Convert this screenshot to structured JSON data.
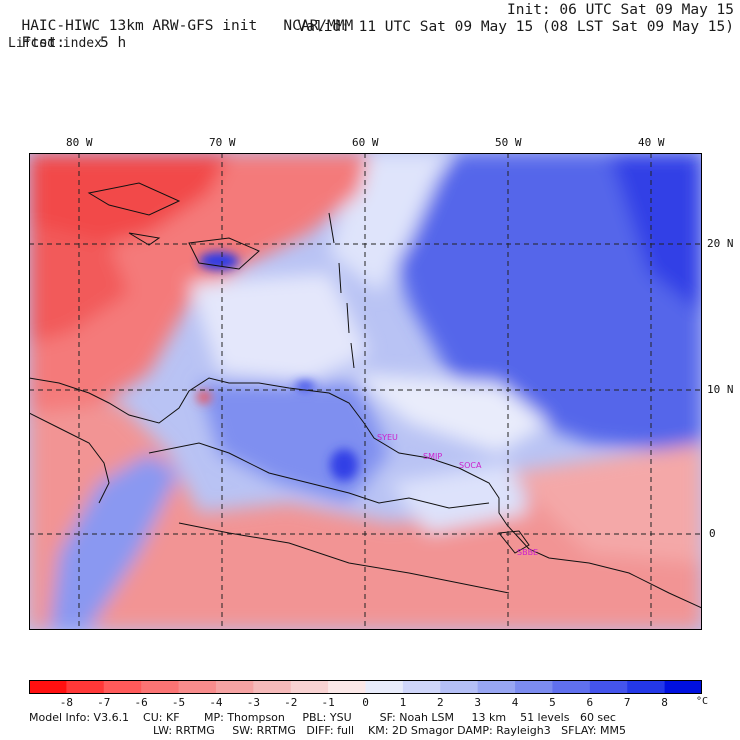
{
  "header": {
    "title": "HAIC-HIWC 13km ARW-GFS init",
    "org": "NCAR/MMM",
    "fcst_label": "Fcst:",
    "fcst_value": "5 h",
    "field": "Lifted index",
    "init": "Init: 06 UTC Sat 09 May 15",
    "valid": "Valid: 11 UTC Sat 09 May 15 (08 LST Sat 09 May 15)"
  },
  "map": {
    "longitude_labels": [
      "80 W",
      "70 W",
      "60 W",
      "50 W",
      "40 W"
    ],
    "latitude_labels": [
      "20 N",
      "10 N",
      "0"
    ],
    "region_labels": [
      "SYEU",
      "SMJP",
      "SOCA",
      "SBBE"
    ],
    "label_color": "#cc22cc"
  },
  "colorbar": {
    "ticks": [
      "-8",
      "-7",
      "-6",
      "-5",
      "-4",
      "-3",
      "-2",
      "-1",
      "0",
      "1",
      "2",
      "3",
      "4",
      "5",
      "6",
      "7",
      "8"
    ],
    "unit": "°C",
    "colors": [
      "#ff1010",
      "#ff3838",
      "#ff5a5a",
      "#fb7474",
      "#f88c8c",
      "#f6a3a3",
      "#f6baba",
      "#f8d2d2",
      "#fbe8e8",
      "#e8ecfb",
      "#cfd6fa",
      "#b4bff6",
      "#98a6f3",
      "#7c8cf0",
      "#6070ee",
      "#4454ec",
      "#2438e8",
      "#0010e0"
    ]
  },
  "footer": {
    "line1": "Model Info: V3.6.1    CU: KF       MP: Thompson     PBL: YSU        SF: Noah LSM     13 km    51 levels   60 sec",
    "line2": "LW: RRTMG     SW: RRTMG   DIFF: full    KM: 2D Smagor DAMP: Rayleigh3   SFLAY: MM5"
  }
}
